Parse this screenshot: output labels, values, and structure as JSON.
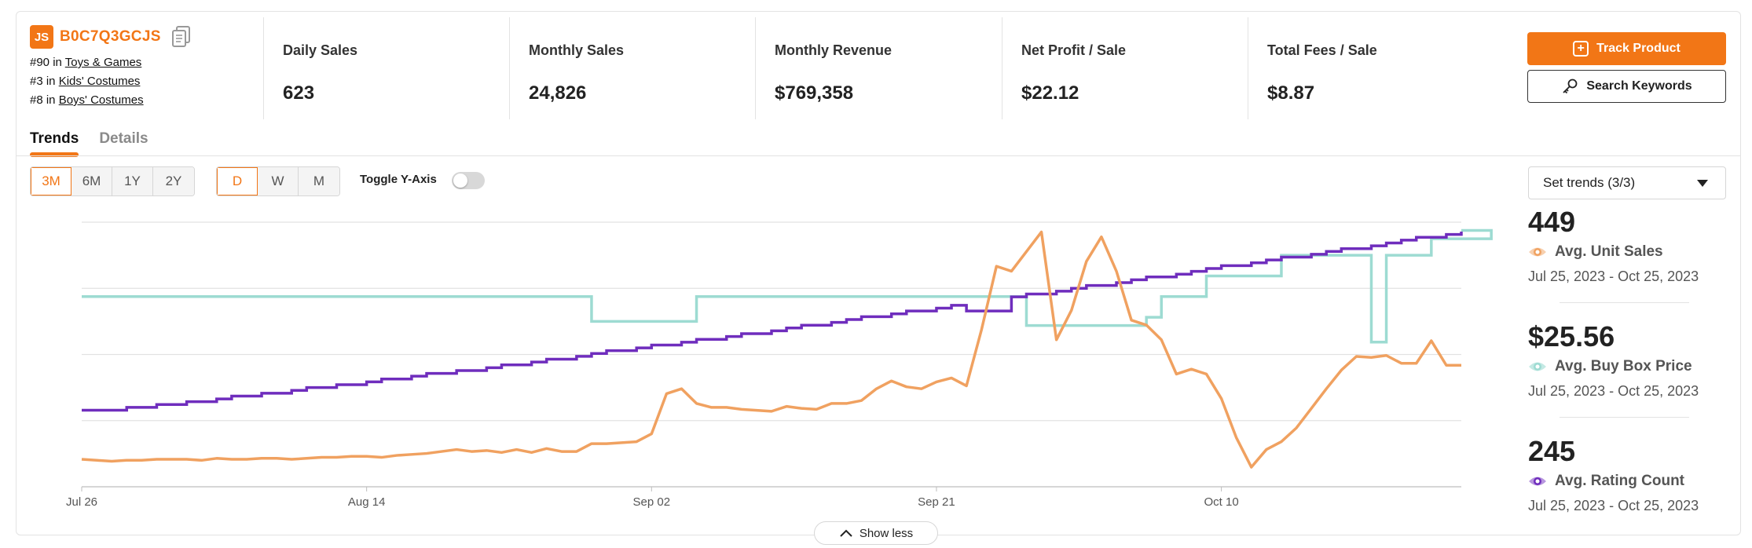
{
  "product": {
    "logo_text": "JS",
    "asin": "B0C7Q3GCJS",
    "ranks": [
      {
        "rank": "#90 in ",
        "category": "Toys & Games"
      },
      {
        "rank": "#3 in ",
        "category": "Kids' Costumes"
      },
      {
        "rank": "#8 in ",
        "category": "Boys' Costumes"
      }
    ]
  },
  "stats": [
    {
      "label": "Daily Sales",
      "value": "623"
    },
    {
      "label": "Monthly Sales",
      "value": "24,826"
    },
    {
      "label": "Monthly Revenue",
      "value": "$769,358"
    },
    {
      "label": "Net Profit / Sale",
      "value": "$22.12"
    },
    {
      "label": "Total Fees / Sale",
      "value": "$8.87"
    }
  ],
  "actions": {
    "track": "Track Product",
    "search": "Search Keywords"
  },
  "tabs": [
    {
      "label": "Trends",
      "active": true
    },
    {
      "label": "Details",
      "active": false
    }
  ],
  "range_options": [
    "3M",
    "6M",
    "1Y",
    "2Y"
  ],
  "range_selected": "3M",
  "interval_options": [
    "D",
    "W",
    "M"
  ],
  "interval_selected": "D",
  "toggle_y_axis": {
    "label": "Toggle Y-Axis",
    "on": false
  },
  "set_trends": "Set trends (3/3)",
  "summaries": [
    {
      "value": "449",
      "name": "Avg. Unit Sales",
      "range": "Jul 25, 2023 - Oct 25, 2023",
      "color": "#f0a160"
    },
    {
      "value": "$25.56",
      "name": "Avg. Buy Box Price",
      "range": "Jul 25, 2023 - Oct 25, 2023",
      "color": "#9ddbd2"
    },
    {
      "value": "245",
      "name": "Avg. Rating Count",
      "range": "Jul 25, 2023 - Oct 25, 2023",
      "color": "#6f2dbd"
    }
  ],
  "show_less": "Show less",
  "chart_data": {
    "type": "line",
    "x_tick_labels": [
      "Jul 26",
      "Aug 14",
      "Sep 02",
      "Sep 21",
      "Oct 10"
    ],
    "x_range": [
      "Jul 26",
      "Oct 25"
    ],
    "grid": true,
    "y_axis_labels_shown": false,
    "series": [
      {
        "name": "Avg. Unit Sales",
        "color": "#f0a160",
        "values": [
          258,
          257,
          256,
          257,
          257,
          258,
          258,
          258,
          257,
          259,
          258,
          258,
          259,
          259,
          258,
          259,
          260,
          260,
          261,
          261,
          260,
          262,
          263,
          264,
          266,
          268,
          266,
          267,
          265,
          268,
          265,
          269,
          266,
          266,
          274,
          274,
          275,
          276,
          284,
          325,
          330,
          315,
          311,
          311,
          309,
          308,
          307,
          312,
          310,
          309,
          315,
          315,
          318,
          330,
          338,
          332,
          330,
          337,
          341,
          333,
          390,
          455,
          450,
          470,
          490,
          380,
          410,
          460,
          485,
          450,
          400,
          395,
          380,
          345,
          350,
          345,
          320,
          280,
          250,
          268,
          276,
          290,
          310,
          330,
          349,
          363,
          362,
          364,
          356,
          356,
          379,
          354,
          354
        ],
        "note": "relative units; the chart shows no y-axis labels"
      },
      {
        "name": "Avg. Buy Box Price",
        "color": "#9ddbd2",
        "steps": [
          [
            0,
            26.6
          ],
          [
            34,
            26.0
          ],
          [
            41,
            26.6
          ],
          [
            63,
            25.9
          ],
          [
            71,
            26.1
          ],
          [
            72,
            26.6
          ],
          [
            75,
            27.1
          ],
          [
            80,
            27.6
          ],
          [
            86,
            25.5
          ],
          [
            87,
            27.6
          ],
          [
            90,
            28.0
          ],
          [
            94,
            28.2
          ]
        ]
      },
      {
        "name": "Avg. Rating Count",
        "color": "#6f2dbd",
        "start": 140,
        "end": 330,
        "note": "steadily increasing staircase with a dip to 245 around Sep 22-25"
      }
    ]
  }
}
